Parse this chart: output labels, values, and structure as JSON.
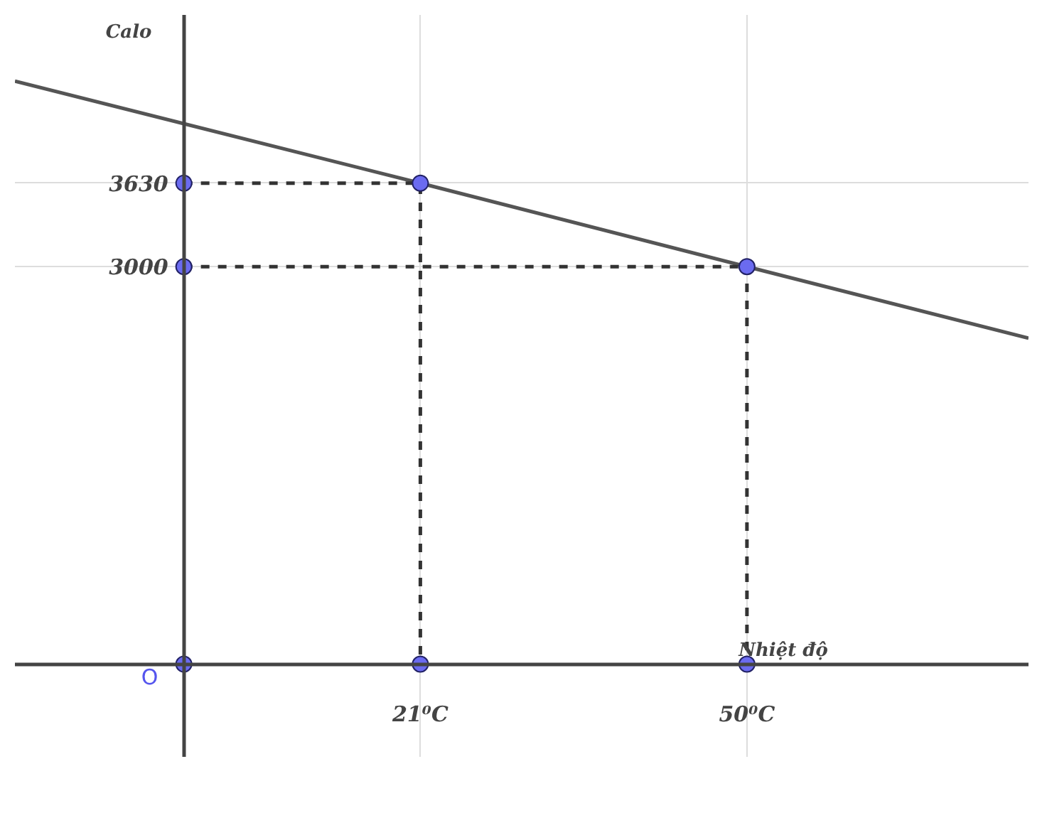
{
  "chart_data": {
    "type": "line",
    "xlabel": "Nhiệt độ",
    "ylabel": "Calo",
    "xlim": [
      -15,
      75
    ],
    "ylim": [
      -700,
      4900
    ],
    "xticks": [
      {
        "value": 21,
        "label": "21⁰C"
      },
      {
        "value": 50,
        "label": "50⁰C"
      }
    ],
    "yticks": [
      3000,
      3630
    ],
    "grid": true,
    "series": [
      {
        "color": "#555555",
        "x": [
          -15,
          21,
          50,
          75
        ],
        "values": [
          4400,
          3630,
          3000,
          2460
        ],
        "marker": "none",
        "line_style": "solid"
      },
      {
        "color": "#333333",
        "x": [
          0,
          21,
          21
        ],
        "values": [
          3630,
          3630,
          0
        ],
        "marker": "none",
        "line_style": "dashed"
      },
      {
        "color": "#333333",
        "x": [
          0,
          50,
          50
        ],
        "values": [
          3000,
          3000,
          0
        ],
        "marker": "none",
        "line_style": "dashed"
      },
      {
        "type": "scatter",
        "color": "#6b6bf0",
        "x": [
          0,
          21,
          50,
          0,
          0,
          21,
          50
        ],
        "values": [
          0,
          0,
          0,
          3000,
          3630,
          3630,
          3000
        ],
        "marker": "circle"
      }
    ],
    "annotations": [
      {
        "text": "O",
        "x": 0,
        "y": 0
      }
    ]
  }
}
